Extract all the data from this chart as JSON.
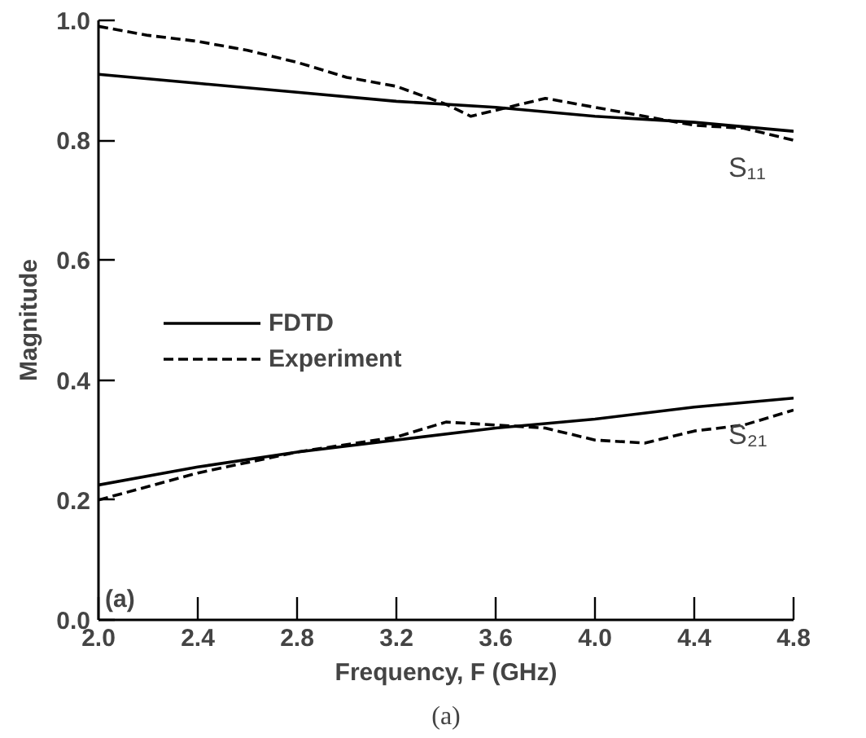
{
  "chart_data": {
    "type": "line",
    "xlabel": "Frequency, F (GHz)",
    "ylabel": "Magnitude",
    "x": [
      2.0,
      2.4,
      2.8,
      3.2,
      3.6,
      4.0,
      4.4,
      4.8
    ],
    "series": [
      {
        "name": "FDTD",
        "color": "#000000",
        "line_style": "solid",
        "values": [
          0.91,
          0.895,
          0.88,
          0.865,
          0.855,
          0.84,
          0.83,
          0.815
        ]
      },
      {
        "name": "Experiment",
        "color": "#000000",
        "line_style": "dashed",
        "x": [
          2.0,
          2.2,
          2.4,
          2.6,
          2.8,
          3.0,
          3.2,
          3.4,
          3.5,
          3.6,
          3.8,
          4.0,
          4.2,
          4.4,
          4.6,
          4.8
        ],
        "values": [
          0.99,
          0.975,
          0.965,
          0.95,
          0.93,
          0.905,
          0.89,
          0.86,
          0.84,
          0.85,
          0.87,
          0.855,
          0.84,
          0.825,
          0.82,
          0.8
        ]
      },
      {
        "color": "#000000",
        "line_style": "solid",
        "values": [
          0.225,
          0.255,
          0.28,
          0.3,
          0.32,
          0.335,
          0.355,
          0.37
        ]
      },
      {
        "color": "#000000",
        "line_style": "dashed",
        "x": [
          2.0,
          2.4,
          2.8,
          3.2,
          3.4,
          3.6,
          3.8,
          4.0,
          4.2,
          4.4,
          4.6,
          4.8
        ],
        "values": [
          0.2,
          0.245,
          0.28,
          0.305,
          0.33,
          0.325,
          0.32,
          0.3,
          0.295,
          0.315,
          0.325,
          0.35
        ]
      }
    ],
    "xlim": [
      2.0,
      4.8
    ],
    "ylim": [
      0.0,
      1.0
    ],
    "xticks": [
      {
        "value": 2,
        "label": "2.0"
      },
      2.4,
      2.8,
      3.2,
      3.6,
      {
        "value": 4,
        "label": "4.0"
      },
      4.4,
      4.8
    ],
    "yticks": [
      {
        "value": 0,
        "label": "0.0"
      },
      0.2,
      0.4,
      0.6,
      0.8,
      {
        "value": 1,
        "label": "1.0"
      }
    ],
    "annotations": [
      "S₁₁",
      "S₂₁",
      "(a)",
      "(a)"
    ],
    "legend": "center left",
    "grid": false,
    "marker": "none"
  }
}
